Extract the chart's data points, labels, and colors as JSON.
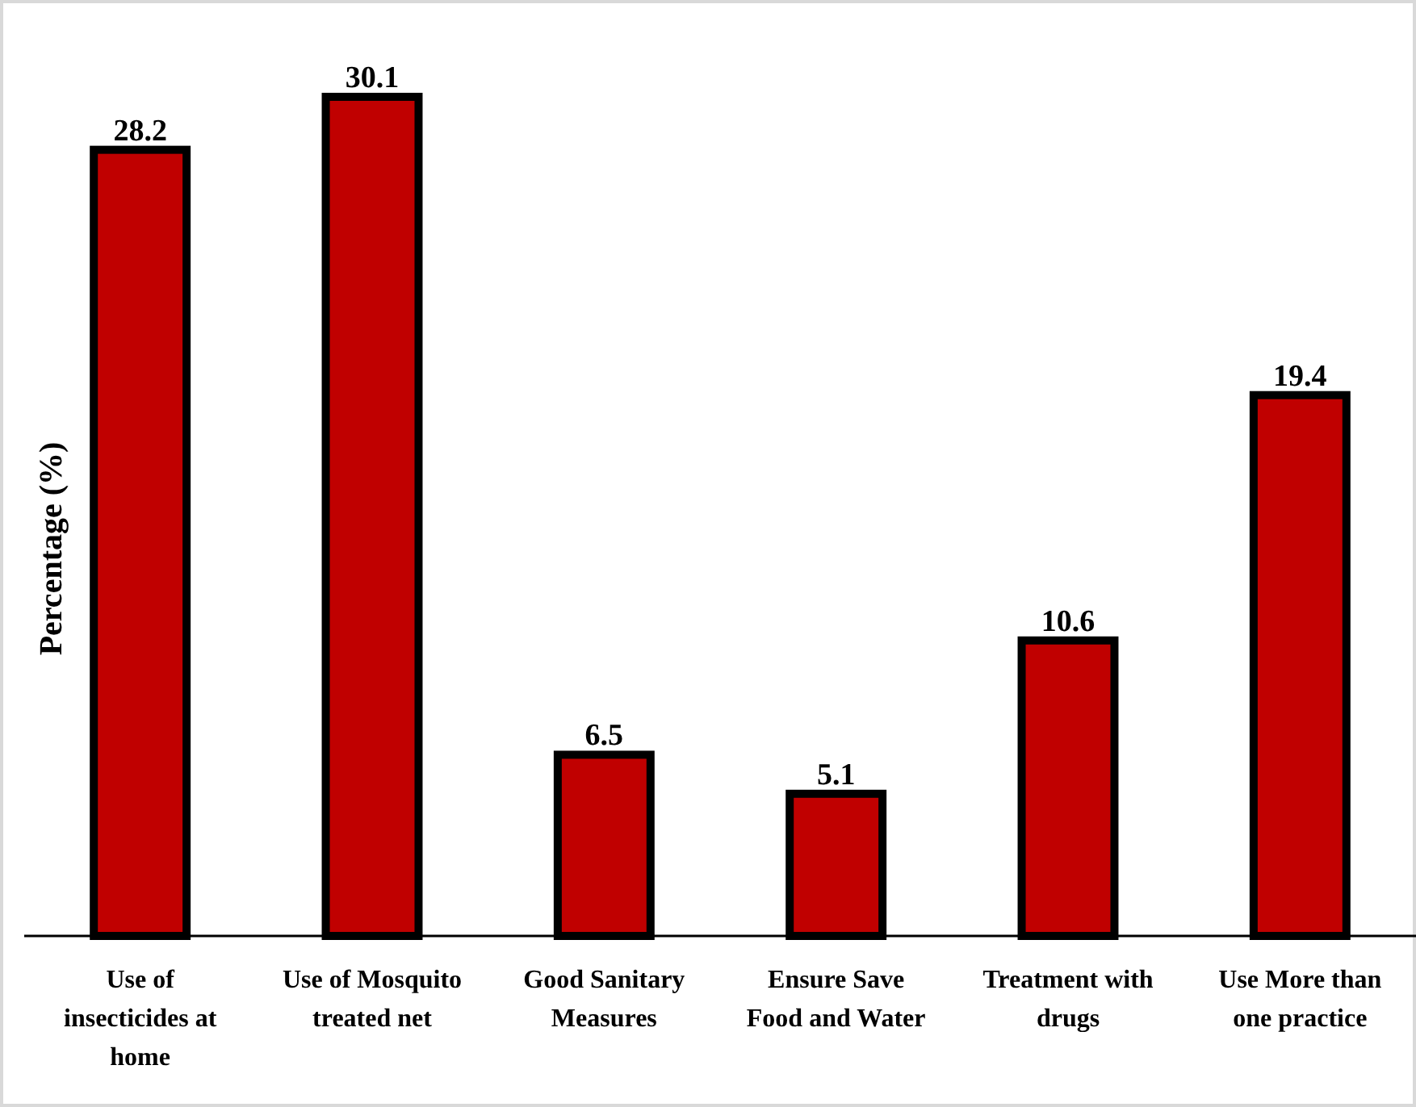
{
  "chart_data": {
    "type": "bar",
    "ylabel": "Percentage (%)",
    "categories": [
      "Use of insecticides at home",
      "Use of Mosquito treated net",
      "Good Sanitary Measures",
      "Ensure Save Food and Water",
      "Treatment with drugs",
      "Use More than one practice"
    ],
    "values": [
      28.2,
      30.1,
      6.5,
      5.1,
      10.6,
      19.4
    ],
    "color": "#c00000",
    "data_labels": true
  }
}
